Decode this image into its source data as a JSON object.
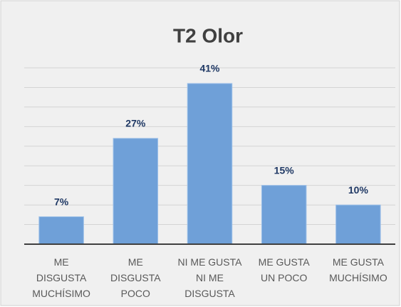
{
  "chart_data": {
    "type": "bar",
    "title": "T2 Olor",
    "categories": [
      "ME\nDISGUSTA\nMUCHÍSIMO",
      "ME\nDISGUSTA\nPOCO",
      "NI ME GUSTA\nNI ME\nDISGUSTA",
      "ME GUSTA\nUN POCO",
      "ME GUSTA\nMUCHÍSIMO"
    ],
    "values": [
      7,
      27,
      41,
      15,
      10
    ],
    "value_labels": [
      "7%",
      "27%",
      "41%",
      "15%",
      "10%"
    ],
    "color": "#6fa0d8",
    "ylim": [
      0,
      45
    ],
    "yticks": [
      0,
      5,
      10,
      15,
      20,
      25,
      30,
      35,
      40,
      45
    ],
    "grid": true
  }
}
